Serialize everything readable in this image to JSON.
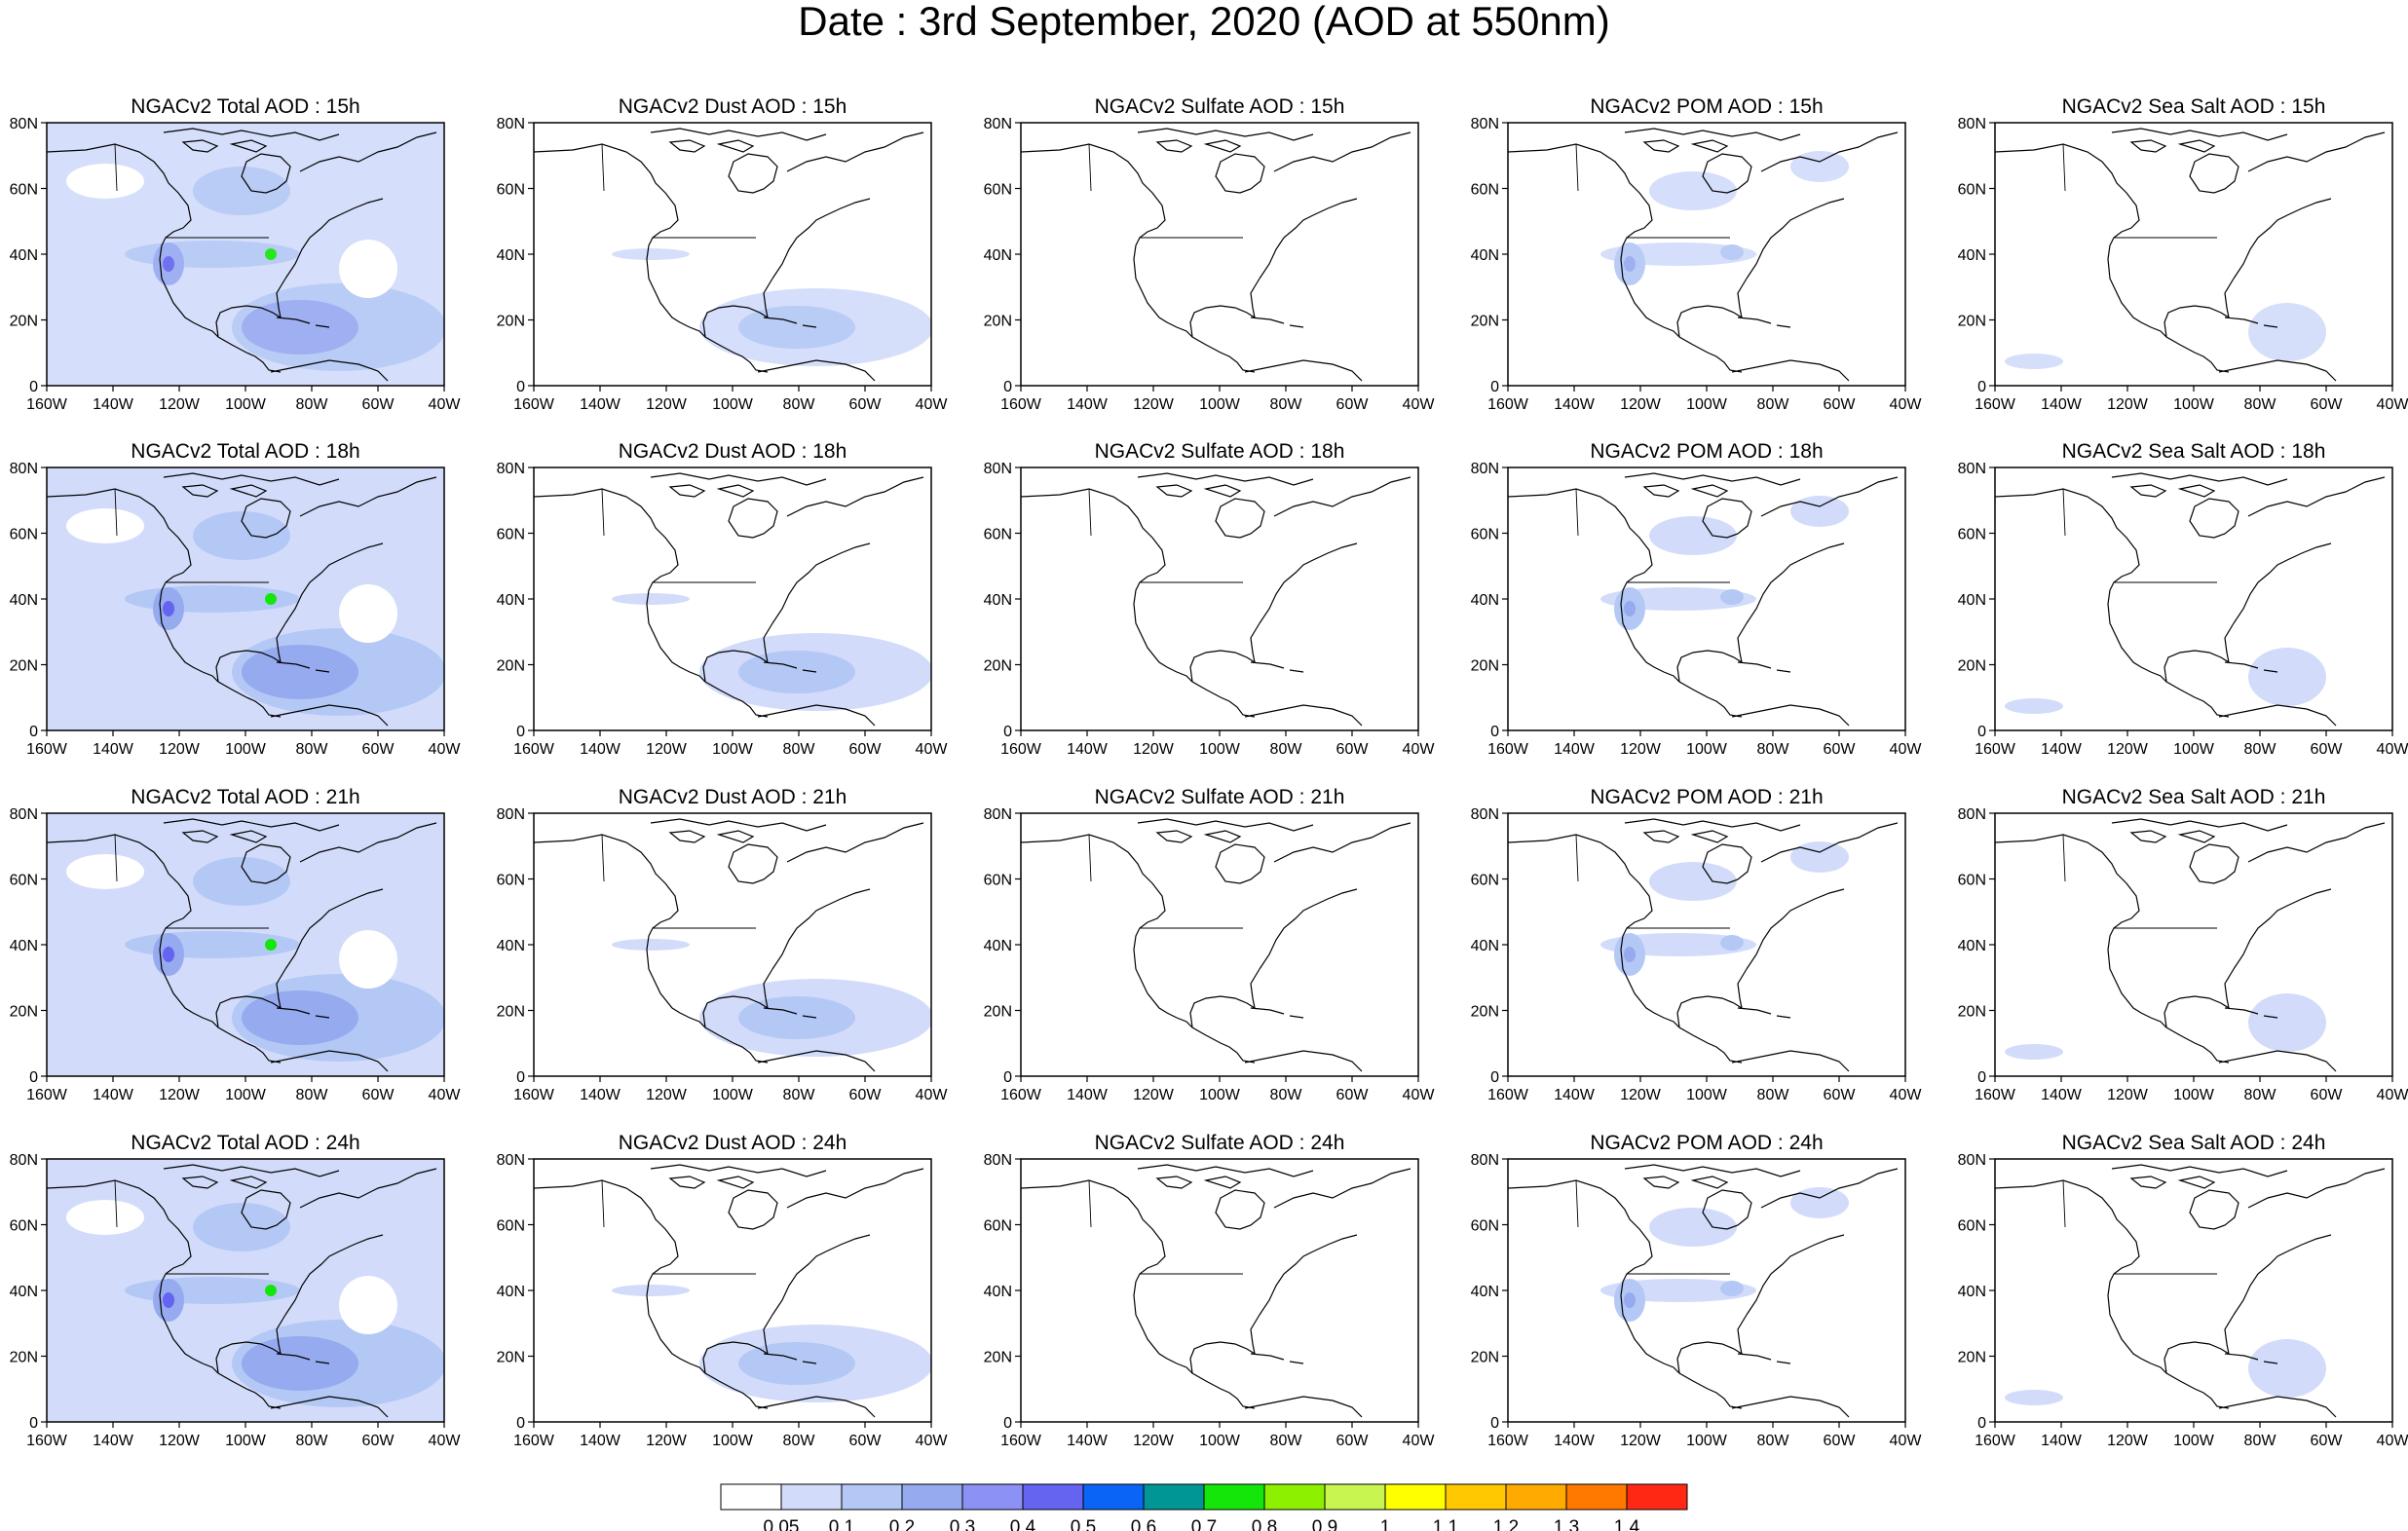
{
  "main_title": "Date : 3rd September, 2020 (AOD at 550nm)",
  "rows": [
    {
      "hour": "15h",
      "titles": [
        "NGACv2 Total AOD : 15h",
        "NGACv2 Dust AOD : 15h",
        "NGACv2 Sulfate AOD : 15h",
        "NGACv2 POM AOD : 15h",
        "NGACv2 Sea Salt AOD : 15h"
      ]
    },
    {
      "hour": "18h",
      "titles": [
        "NGACv2 Total AOD : 18h",
        "NGACv2 Dust AOD : 18h",
        "NGACv2 Sulfate AOD : 18h",
        "NGACv2 POM AOD : 18h",
        "NGACv2 Sea Salt AOD : 18h"
      ]
    },
    {
      "hour": "21h",
      "titles": [
        "NGACv2 Total AOD : 21h",
        "NGACv2 Dust AOD : 21h",
        "NGACv2 Sulfate AOD : 21h",
        "NGACv2 POM AOD : 21h",
        "NGACv2 Sea Salt AOD : 21h"
      ]
    },
    {
      "hour": "24h",
      "titles": [
        "NGACv2 Total AOD : 24h",
        "NGACv2 Dust AOD : 24h",
        "NGACv2 Sulfate AOD : 24h",
        "NGACv2 POM AOD : 24h",
        "NGACv2 Sea Salt  AOD : 24h"
      ]
    }
  ],
  "species": [
    "total",
    "dust",
    "sulfate",
    "pom",
    "seasalt"
  ],
  "lat_ticks": [
    "80N",
    "60N",
    "40N",
    "20N",
    "0"
  ],
  "lon_ticks": [
    "160W",
    "140W",
    "120W",
    "100W",
    "80W",
    "60W",
    "40W"
  ],
  "colorbar": {
    "colors": [
      "#ffffff",
      "#d2dcfa",
      "#b4c8f5",
      "#96aaf0",
      "#8c91f5",
      "#6464f0",
      "#0a64f5",
      "#009696",
      "#14e60a",
      "#8cf000",
      "#c8f550",
      "#ffff00",
      "#ffc800",
      "#ffaa00",
      "#ff7800",
      "#ff2814"
    ],
    "labels": [
      "0.05",
      "0.1",
      "0.2",
      "0.3",
      "0.4",
      "0.5",
      "0.6",
      "0.7",
      "0.8",
      "0.9",
      "1",
      "1.1",
      "1.2",
      "1.3",
      "1.4"
    ]
  },
  "colors": {
    "coast": "#000000",
    "light": "#d2dcfa",
    "mid": "#b4c8f5",
    "strong": "#96aaf0",
    "peak": "#6464f0",
    "hot": "#14e60a"
  }
}
